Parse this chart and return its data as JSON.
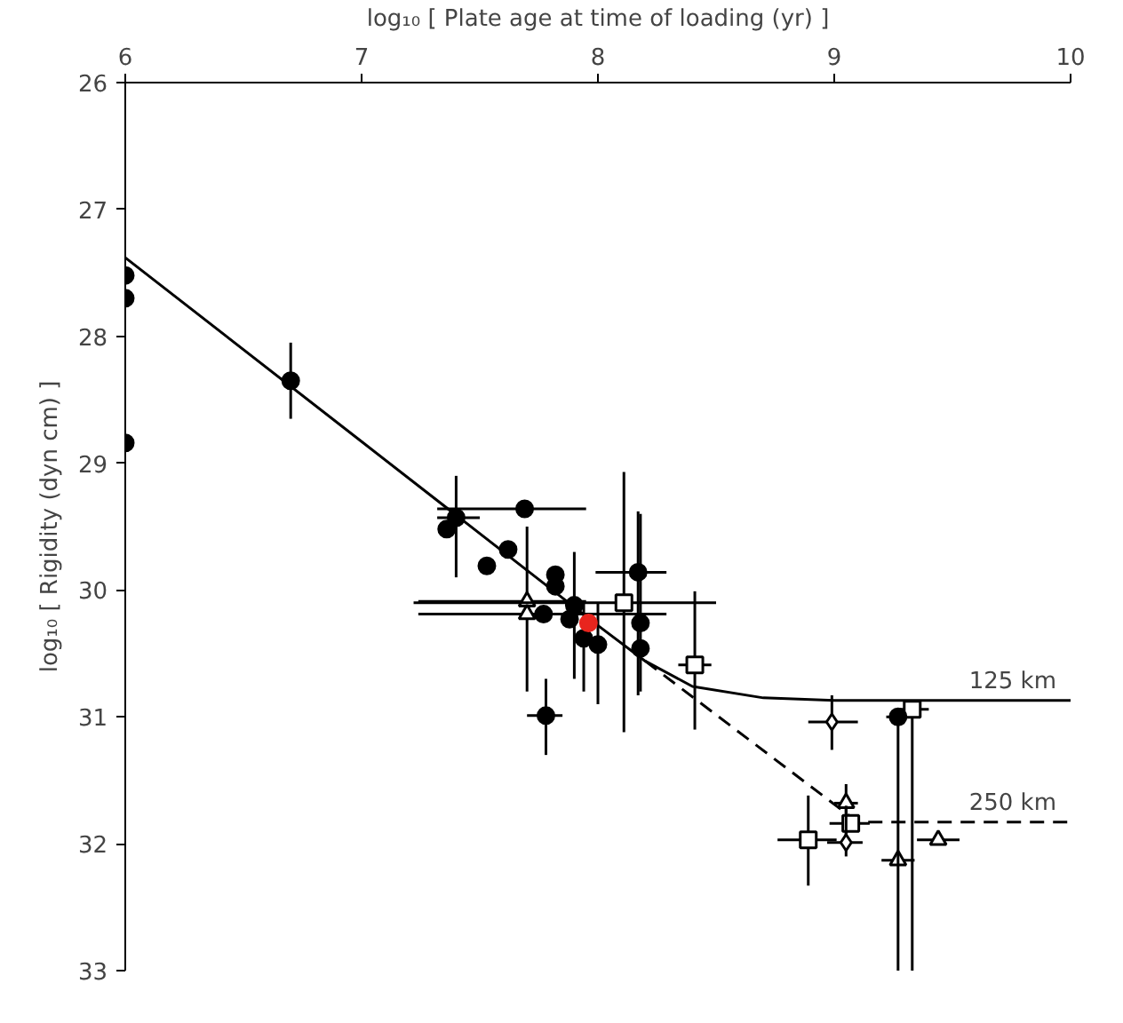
{
  "chart_data": {
    "type": "scatter",
    "xlabel": "log₁₀ [ Plate age at time of loading (yr) ]",
    "ylabel": "log₁₀ [ Rigidity (dyn cm) ]",
    "xlim": [
      6,
      10
    ],
    "xticks": [
      6,
      7,
      8,
      9,
      10
    ],
    "ylim": [
      33,
      26
    ],
    "yticks": [
      26,
      27,
      28,
      29,
      30,
      31,
      32,
      33
    ],
    "grid": false,
    "legend": false,
    "series": [
      {
        "type": "line",
        "name": "125 km",
        "color": "#000000",
        "line_style": "solid",
        "marker": "none",
        "x": [
          6,
          7,
          8,
          8.2,
          8.4,
          8.7,
          9.0,
          10
        ],
        "values": [
          27.38,
          28.83,
          30.28,
          30.56,
          30.76,
          30.85,
          30.87,
          30.87
        ]
      },
      {
        "type": "line",
        "name": "250 km",
        "color": "#000000",
        "line_style": "dashed",
        "marker": "none",
        "x": [
          8.2,
          9.1,
          10
        ],
        "values": [
          30.56,
          31.83,
          31.83
        ]
      },
      {
        "color": "#000000",
        "marker": "circle",
        "x": [
          6.0,
          6.0,
          6.0,
          6.7,
          7.4,
          7.36,
          7.69,
          7.62,
          7.53,
          7.82,
          7.82,
          7.77,
          7.78,
          7.9,
          7.88,
          7.94,
          8.0,
          8.18,
          8.18
        ],
        "values": [
          27.52,
          27.7,
          28.84,
          28.35,
          29.43,
          29.52,
          29.36,
          29.68,
          29.81,
          29.88,
          29.97,
          30.19,
          30.99,
          30.12,
          30.23,
          30.38,
          30.43,
          30.26,
          30.46
        ],
        "errors": [
          null,
          null,
          null,
          [
            28.05,
            28.65
          ],
          [
            29.1,
            29.9
          ],
          null,
          null,
          null,
          null,
          null,
          null,
          null,
          [
            30.7,
            31.3
          ],
          [
            29.7,
            30.7
          ],
          null,
          [
            30.1,
            30.8
          ],
          [
            30.1,
            30.9
          ],
          [
            29.4,
            30.8
          ],
          null
        ],
        "xerrors": [
          null,
          null,
          null,
          null,
          [
            7.32,
            7.5
          ],
          null,
          [
            7.32,
            7.95
          ],
          null,
          null,
          null,
          null,
          null,
          [
            7.7,
            7.85
          ],
          null,
          null,
          null,
          null,
          null,
          null
        ]
      },
      {
        "color": "#000000",
        "marker": "triangle",
        "x": [
          7.7,
          7.7,
          9.05,
          9.27,
          9.44
        ],
        "values": [
          30.09,
          30.19,
          31.68,
          32.13,
          31.97
        ],
        "errors": [
          [
            29.5,
            30.8
          ],
          null,
          [
            31.53,
            31.97
          ],
          null,
          null
        ],
        "xerrors": [
          [
            7.24,
            7.95
          ],
          [
            7.24,
            8.29
          ],
          [
            9.0,
            9.1
          ],
          [
            9.2,
            9.34
          ],
          [
            9.35,
            9.53
          ]
        ]
      },
      {
        "color": "#000000",
        "marker": "square",
        "x": [
          8.11,
          8.41,
          9.33,
          8.89,
          9.07
        ],
        "values": [
          30.1,
          30.59,
          30.94,
          31.97,
          31.84
        ],
        "errors": [
          [
            29.07,
            31.12
          ],
          [
            30.01,
            31.1
          ],
          [
            30.94,
            33.0
          ],
          [
            31.62,
            32.33
          ],
          null
        ],
        "xerrors": [
          [
            7.22,
            8.5
          ],
          [
            8.34,
            8.48
          ],
          [
            9.27,
            9.4
          ],
          [
            8.76,
            9.01
          ],
          [
            8.98,
            9.15
          ]
        ]
      },
      {
        "color": "#000000",
        "marker": "circle",
        "x": [
          8.17,
          9.27
        ],
        "values": [
          29.86,
          31.0
        ],
        "errors": [
          [
            29.38,
            30.83
          ],
          [
            31.0,
            33.0
          ]
        ],
        "xerrors": [
          [
            7.99,
            8.29
          ],
          [
            9.22,
            9.3
          ]
        ]
      },
      {
        "color": "#000000",
        "marker": "diamond",
        "x": [
          8.99,
          9.05
        ],
        "values": [
          31.04,
          31.99
        ],
        "errors": [
          [
            30.83,
            31.26
          ],
          [
            31.7,
            32.1
          ]
        ],
        "xerrors": [
          [
            8.89,
            9.1
          ],
          [
            8.97,
            9.12
          ]
        ]
      },
      {
        "color": "#e8251e",
        "marker": "circle",
        "x": [
          7.96
        ],
        "values": [
          30.26
        ]
      }
    ]
  }
}
